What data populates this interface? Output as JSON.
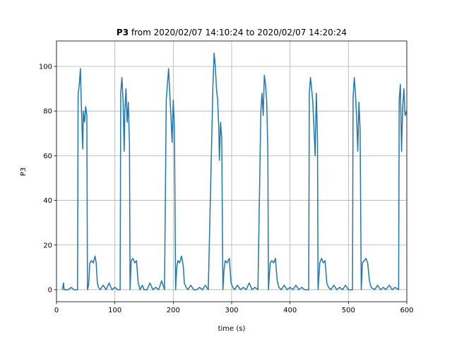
{
  "chart_data": {
    "type": "line",
    "title": [
      "P3",
      "from 2020/02/07 14:10:24 to 2020/02/07 14:20:24"
    ],
    "xlabel": "time (s)",
    "ylabel": "P3",
    "x": [
      10,
      12,
      13,
      20,
      25,
      30,
      36,
      37,
      39,
      41,
      42,
      44,
      45,
      46,
      48,
      50,
      52,
      53,
      55,
      57,
      60,
      63,
      66,
      68,
      70,
      72,
      75,
      80,
      85,
      90,
      95,
      100,
      105,
      109,
      110,
      112,
      114,
      116,
      117,
      119,
      121,
      123,
      125,
      126,
      128,
      131,
      134,
      137,
      140,
      143,
      147,
      150,
      155,
      160,
      165,
      170,
      175,
      180,
      185,
      188,
      190,
      192,
      194,
      196,
      198,
      200,
      202,
      204,
      206,
      208,
      211,
      214,
      217,
      219,
      222,
      225,
      230,
      235,
      240,
      245,
      250,
      255,
      260,
      268,
      270,
      272,
      274,
      276,
      278,
      279,
      281,
      283,
      285,
      287,
      289,
      292,
      296,
      299,
      302,
      305,
      310,
      315,
      320,
      325,
      330,
      335,
      340,
      345,
      350,
      352,
      354,
      356,
      358,
      360,
      362,
      363,
      366,
      369,
      372,
      375,
      378,
      381,
      385,
      390,
      395,
      400,
      405,
      410,
      415,
      420,
      425,
      432,
      433,
      435,
      437,
      439,
      441,
      443,
      445,
      447,
      448,
      451,
      454,
      457,
      460,
      463,
      466,
      470,
      475,
      480,
      485,
      490,
      495,
      500,
      507,
      508,
      510,
      512,
      514,
      516,
      518,
      520,
      522,
      524,
      527,
      530,
      533,
      536,
      539,
      545,
      550,
      555,
      560,
      564,
      570,
      575,
      580,
      586,
      587,
      589,
      591,
      593,
      595,
      597,
      600
    ],
    "series": [
      {
        "name": "P3",
        "color": "#1f77b4",
        "values": [
          0,
          3,
          0,
          0,
          1,
          0,
          0,
          87,
          92,
          99,
          88,
          70,
          63,
          80,
          75,
          82,
          78,
          0,
          2,
          12,
          13,
          12,
          15,
          12,
          3,
          1,
          0,
          2,
          0,
          3,
          0,
          1,
          0,
          0,
          88,
          95,
          85,
          62,
          80,
          90,
          75,
          84,
          65,
          0,
          13,
          14,
          12,
          13,
          3,
          0,
          2,
          0,
          0,
          3,
          0,
          1,
          0,
          4,
          0,
          85,
          92,
          99,
          88,
          78,
          66,
          85,
          72,
          0,
          10,
          13,
          12,
          15,
          11,
          3,
          1,
          0,
          2,
          0,
          0,
          1,
          0,
          2,
          0,
          92,
          106,
          100,
          90,
          85,
          72,
          58,
          75,
          68,
          0,
          9,
          13,
          12,
          14,
          3,
          1,
          0,
          2,
          0,
          1,
          0,
          3,
          0,
          1,
          0,
          80,
          88,
          78,
          96,
          92,
          85,
          62,
          0,
          12,
          13,
          12,
          14,
          4,
          1,
          0,
          2,
          0,
          1,
          0,
          2,
          0,
          1,
          0,
          0,
          88,
          95,
          90,
          84,
          72,
          60,
          88,
          68,
          0,
          12,
          14,
          12,
          13,
          3,
          1,
          0,
          2,
          0,
          1,
          0,
          2,
          0,
          0,
          86,
          95,
          88,
          78,
          62,
          84,
          72,
          0,
          12,
          13,
          14,
          12,
          4,
          1,
          0,
          2,
          0,
          1,
          0,
          2,
          0,
          1,
          0,
          85,
          92,
          62,
          82,
          90,
          78,
          80
        ]
      }
    ],
    "xlim": [
      0,
      600
    ],
    "ylim": [
      -5.4,
      111.4
    ],
    "xticks": [
      0,
      100,
      200,
      300,
      400,
      500,
      600
    ],
    "yticks": [
      0,
      20,
      40,
      60,
      80,
      100
    ],
    "grid": true
  }
}
